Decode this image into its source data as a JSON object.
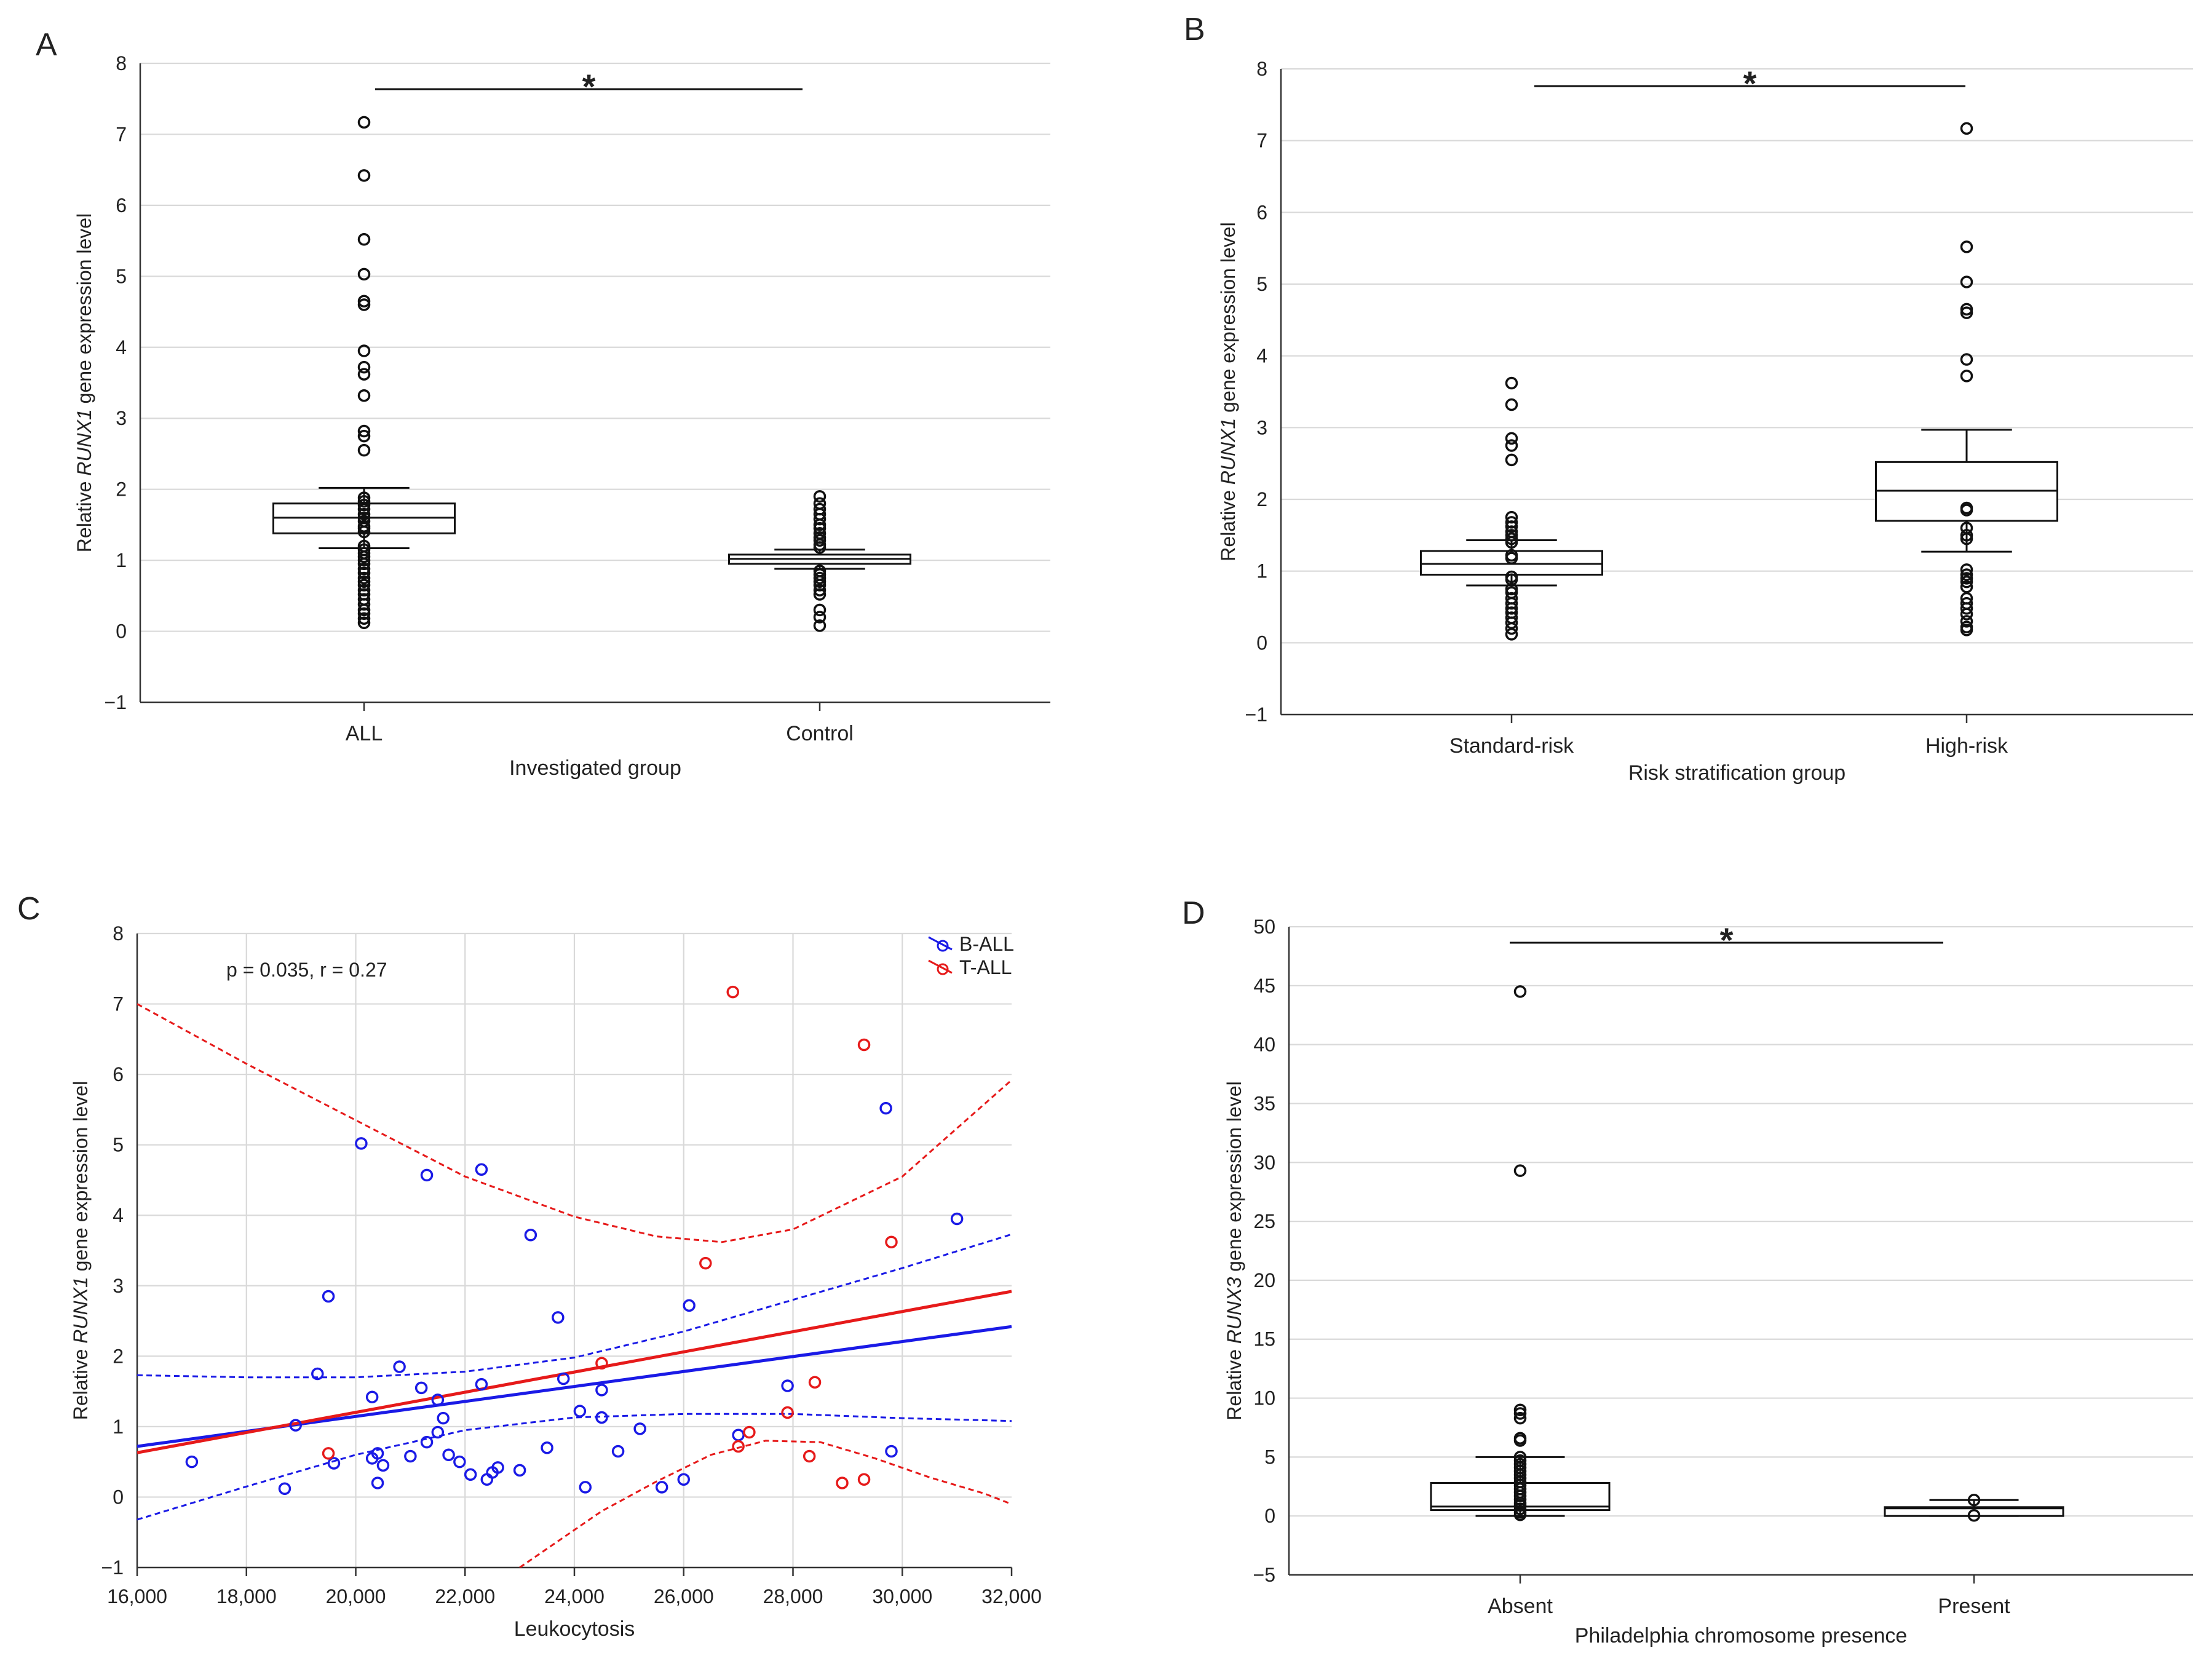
{
  "chart_data": [
    {
      "panel": "A",
      "type": "box",
      "xlabel": "Investigated group",
      "ylabel_parts": [
        "Relative ",
        "RUNX1",
        " gene expression level"
      ],
      "ylim": [
        -1,
        8
      ],
      "yticks": [
        -1,
        0,
        1,
        2,
        3,
        4,
        5,
        6,
        7,
        8
      ],
      "ytick_labels": [
        "−1",
        "0",
        "1",
        "2",
        "3",
        "4",
        "5",
        "6",
        "7",
        "8"
      ],
      "categories": [
        "ALL",
        "Control"
      ],
      "significance": "*",
      "boxes": [
        {
          "q1": 1.38,
          "median": 1.6,
          "q3": 1.8,
          "whisker_low": 1.17,
          "whisker_high": 2.02,
          "points": [
            7.17,
            6.42,
            5.52,
            5.03,
            4.65,
            4.6,
            3.95,
            3.72,
            3.62,
            3.32,
            2.82,
            2.75,
            2.55,
            1.88,
            1.83,
            1.78,
            1.72,
            1.65,
            1.6,
            1.55,
            1.48,
            1.45,
            1.4,
            1.2,
            1.15,
            1.1,
            1.05,
            1.0,
            0.95,
            0.88,
            0.82,
            0.75,
            0.7,
            0.65,
            0.58,
            0.52,
            0.45,
            0.38,
            0.3,
            0.25,
            0.18,
            0.12
          ]
        },
        {
          "q1": 0.95,
          "median": 1.02,
          "q3": 1.08,
          "whisker_low": 0.88,
          "whisker_high": 1.15,
          "points": [
            1.9,
            1.8,
            1.72,
            1.65,
            1.58,
            1.5,
            1.45,
            1.38,
            1.32,
            1.28,
            1.22,
            1.18,
            0.85,
            0.8,
            0.75,
            0.7,
            0.65,
            0.58,
            0.52,
            0.3,
            0.2,
            0.08
          ]
        }
      ]
    },
    {
      "panel": "B",
      "type": "box",
      "xlabel": "Risk stratification group",
      "ylabel_parts": [
        "Relative ",
        "RUNX1",
        " gene expression level"
      ],
      "ylim": [
        -1,
        8
      ],
      "yticks": [
        -1,
        0,
        1,
        2,
        3,
        4,
        5,
        6,
        7,
        8
      ],
      "ytick_labels": [
        "−1",
        "0",
        "1",
        "2",
        "3",
        "4",
        "5",
        "6",
        "7",
        "8"
      ],
      "categories": [
        "Standard-risk",
        "High-risk"
      ],
      "significance": "*",
      "boxes": [
        {
          "q1": 0.95,
          "median": 1.1,
          "q3": 1.28,
          "whisker_low": 0.8,
          "whisker_high": 1.43,
          "points": [
            3.62,
            3.32,
            2.85,
            2.75,
            2.55,
            1.75,
            1.68,
            1.62,
            1.55,
            1.5,
            1.45,
            1.4,
            1.22,
            1.18,
            0.92,
            0.88,
            0.75,
            0.7,
            0.62,
            0.55,
            0.48,
            0.42,
            0.35,
            0.28,
            0.2,
            0.12
          ]
        },
        {
          "q1": 1.7,
          "median": 2.12,
          "q3": 2.52,
          "whisker_low": 1.27,
          "whisker_high": 2.97,
          "points": [
            7.17,
            5.52,
            5.03,
            4.65,
            4.6,
            3.95,
            3.72,
            1.88,
            1.85,
            1.6,
            1.5,
            1.45,
            1.02,
            0.95,
            0.9,
            0.85,
            0.78,
            0.62,
            0.55,
            0.48,
            0.4,
            0.3,
            0.22,
            0.18
          ]
        }
      ]
    },
    {
      "panel": "C",
      "type": "scatter",
      "xlabel": "Leukocytosis",
      "ylabel_parts": [
        "Relative ",
        "RUNX1",
        " gene expression level"
      ],
      "xlim": [
        16000,
        32000
      ],
      "ylim": [
        -1,
        8
      ],
      "xticks": [
        16000,
        18000,
        20000,
        22000,
        24000,
        26000,
        28000,
        30000,
        32000
      ],
      "xtick_labels": [
        "16,000",
        "18,000",
        "20,000",
        "22,000",
        "24,000",
        "26,000",
        "28,000",
        "30,000",
        "32,000"
      ],
      "yticks": [
        -1,
        0,
        1,
        2,
        3,
        4,
        5,
        6,
        7,
        8
      ],
      "ytick_labels": [
        "−1",
        "0",
        "1",
        "2",
        "3",
        "4",
        "5",
        "6",
        "7",
        "8"
      ],
      "annotation": "p = 0.035, r = 0.27",
      "legend_position": "top-right",
      "series": [
        {
          "name": "B-ALL",
          "color": "#1a1ae6",
          "x": [
            17000,
            18700,
            18900,
            19300,
            19500,
            19600,
            20100,
            20300,
            20300,
            20400,
            20400,
            20500,
            20800,
            21000,
            21200,
            21300,
            21300,
            21500,
            21500,
            21600,
            21700,
            21900,
            22100,
            22300,
            22300,
            22400,
            22500,
            22600,
            23000,
            23200,
            23500,
            23700,
            23800,
            24100,
            24200,
            24500,
            24500,
            24800,
            25200,
            25600,
            26000,
            26100,
            27000,
            27900,
            29700,
            29800,
            31000
          ],
          "y": [
            0.5,
            0.12,
            1.02,
            1.75,
            2.85,
            0.48,
            5.02,
            1.42,
            0.55,
            0.2,
            0.62,
            0.45,
            1.85,
            0.58,
            1.55,
            0.78,
            4.57,
            0.92,
            1.38,
            1.12,
            0.6,
            0.5,
            0.32,
            4.65,
            1.6,
            0.25,
            0.35,
            0.42,
            0.38,
            3.72,
            0.7,
            2.55,
            1.68,
            1.22,
            0.14,
            1.52,
            1.13,
            0.65,
            0.97,
            0.14,
            0.25,
            2.72,
            0.88,
            1.58,
            5.52,
            0.65,
            3.95
          ]
        },
        {
          "name": "T-ALL",
          "color": "#e61a1a",
          "x": [
            19500,
            24500,
            26400,
            26900,
            27000,
            27200,
            27900,
            28300,
            28400,
            28900,
            29300,
            29300,
            29800
          ],
          "y": [
            0.62,
            1.9,
            3.32,
            7.17,
            0.72,
            0.92,
            1.2,
            0.58,
            1.63,
            0.2,
            0.25,
            6.42,
            3.62
          ]
        }
      ],
      "fit_lines": [
        {
          "series": "B-ALL",
          "color": "#1a1ae6",
          "x": [
            16000,
            32000
          ],
          "y": [
            0.72,
            2.42
          ]
        },
        {
          "series": "T-ALL",
          "color": "#e61a1a",
          "x": [
            16000,
            32000
          ],
          "y": [
            0.63,
            2.92
          ]
        }
      ],
      "confidence_bands": [
        {
          "series": "B-ALL",
          "color": "#1a1ae6",
          "upper_x": [
            16000,
            18000,
            20000,
            22000,
            24000,
            26000,
            28000,
            30000,
            32000
          ],
          "upper_y": [
            1.73,
            1.7,
            1.7,
            1.78,
            1.98,
            2.35,
            2.8,
            3.25,
            3.73
          ],
          "lower_x": [
            16000,
            18000,
            20000,
            22000,
            24000,
            26000,
            28000,
            30000,
            32000
          ],
          "lower_y": [
            -0.32,
            0.15,
            0.6,
            0.95,
            1.13,
            1.18,
            1.18,
            1.12,
            1.08
          ]
        },
        {
          "series": "T-ALL",
          "color": "#e61a1a",
          "upper_x": [
            16000,
            18000,
            20000,
            22000,
            24000,
            25500,
            26700,
            28000,
            30000,
            32000
          ],
          "upper_y": [
            7.0,
            6.15,
            5.35,
            4.55,
            3.98,
            3.7,
            3.62,
            3.8,
            4.55,
            5.92
          ],
          "lower_x": [
            23000,
            24500,
            25500,
            26500,
            27500,
            28500,
            29500,
            30500,
            31500,
            32000
          ],
          "lower_y": [
            -1.0,
            -0.2,
            0.22,
            0.6,
            0.8,
            0.78,
            0.55,
            0.28,
            0.05,
            -0.1
          ]
        }
      ]
    },
    {
      "panel": "D",
      "type": "box",
      "xlabel": "Philadelphia chromosome presence",
      "ylabel_parts": [
        "Relative ",
        "RUNX3",
        " gene expression level"
      ],
      "ylim": [
        -5,
        50
      ],
      "yticks": [
        -5,
        0,
        5,
        10,
        15,
        20,
        25,
        30,
        35,
        40,
        45,
        50
      ],
      "ytick_labels": [
        "−5",
        "0",
        "5",
        "10",
        "15",
        "20",
        "25",
        "30",
        "35",
        "40",
        "45",
        "50"
      ],
      "categories": [
        "Absent",
        "Present"
      ],
      "significance": "*",
      "boxes": [
        {
          "q1": 0.5,
          "median": 0.8,
          "q3": 2.8,
          "whisker_low": 0.0,
          "whisker_high": 5.0,
          "points": [
            44.5,
            29.3,
            9.0,
            8.7,
            8.3,
            6.6,
            6.4,
            5.0,
            4.7,
            4.4,
            4.1,
            3.8,
            3.5,
            3.2,
            2.9,
            2.6,
            2.3,
            2.0,
            1.7,
            1.4,
            1.1,
            0.9,
            0.6,
            0.3,
            0.1
          ]
        },
        {
          "q1": 0.0,
          "median": 0.65,
          "q3": 0.75,
          "whisker_low": 0.0,
          "whisker_high": 1.35,
          "points": [
            1.35,
            0.05
          ]
        }
      ]
    }
  ]
}
